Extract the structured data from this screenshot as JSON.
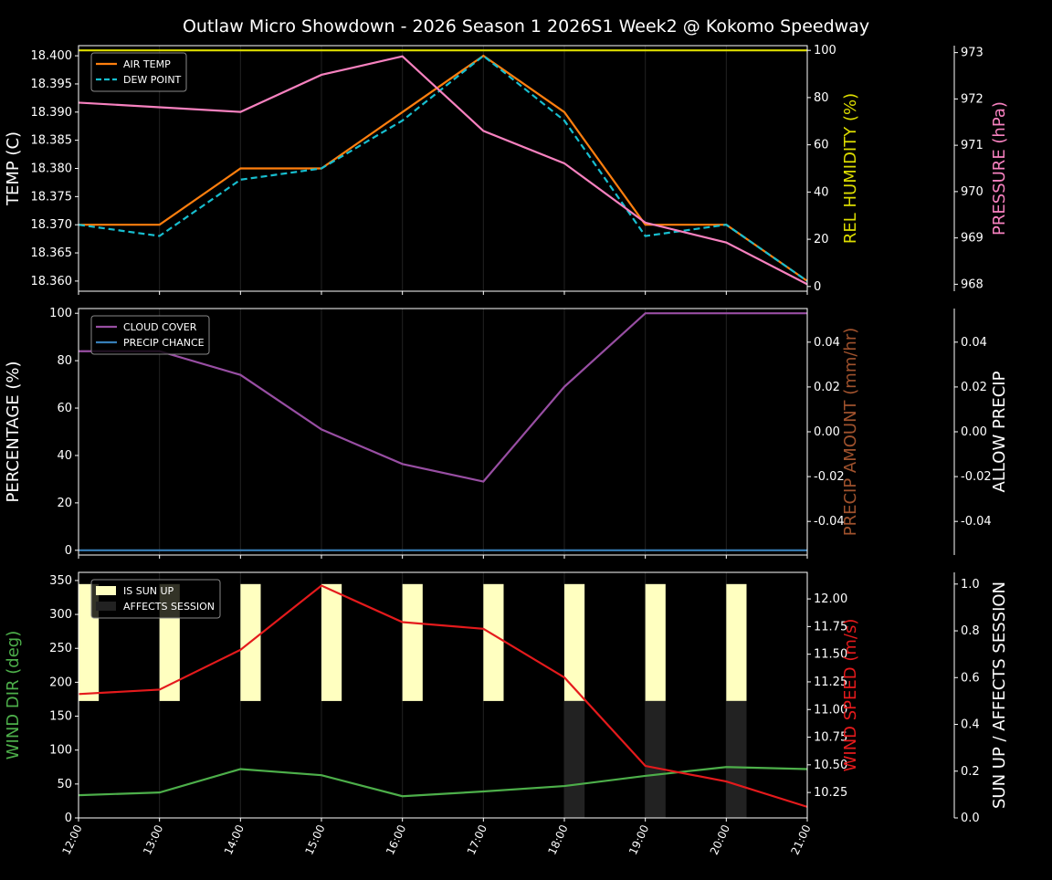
{
  "title": "Outlaw Micro Showdown - 2026 Season 1 2026S1 Week2 @ Kokomo Speedway",
  "chart_data": [
    {
      "type": "line",
      "x": [
        "12:00",
        "13:00",
        "14:00",
        "15:00",
        "16:00",
        "17:00",
        "18:00",
        "19:00",
        "20:00",
        "21:00"
      ],
      "ylabel": "TEMP (C)",
      "ylim": [
        18.3582,
        18.4018
      ],
      "yticks": [
        18.36,
        18.365,
        18.37,
        18.375,
        18.38,
        18.385,
        18.39,
        18.395,
        18.4
      ],
      "y2label": "REL HUMIDITY (%)",
      "y2lim": [
        -2,
        102
      ],
      "y2ticks": [
        0,
        20,
        40,
        60,
        80,
        100
      ],
      "y3label": "PRESSURE (hPa)",
      "y3lim": [
        967.85,
        973.15
      ],
      "y3ticks": [
        968,
        969,
        970,
        971,
        972,
        973
      ],
      "legend": "top-left",
      "series": [
        {
          "name": "AIR TEMP",
          "axis": "y",
          "color": "#ff7f0e",
          "dash": false,
          "values": [
            18.37,
            18.37,
            18.38,
            18.38,
            18.39,
            18.4,
            18.39,
            18.37,
            18.37,
            18.36
          ]
        },
        {
          "name": "DEW POINT",
          "axis": "y",
          "color": "#17becf",
          "dash": true,
          "values": [
            18.37,
            18.368,
            18.378,
            18.38,
            18.3885,
            18.4,
            18.3885,
            18.368,
            18.37,
            18.36
          ]
        },
        {
          "axis": "y2",
          "color": "#dddd00",
          "values": [
            100,
            100,
            100,
            100,
            100,
            100,
            100,
            100,
            100,
            100
          ]
        },
        {
          "axis": "y3",
          "color": "#f781bf",
          "values": [
            971.92,
            971.82,
            971.72,
            972.52,
            972.92,
            971.31,
            970.61,
            969.33,
            968.9,
            968.0
          ]
        }
      ]
    },
    {
      "type": "line",
      "ylabel": "PERCENTAGE (%)",
      "ylim": [
        -2,
        102
      ],
      "yticks": [
        0,
        20,
        40,
        60,
        80,
        100
      ],
      "y2label": "PRECIP AMOUNT (mm/hr)",
      "y2lim": [
        -0.055,
        0.055
      ],
      "y2ticks": [
        -0.04,
        -0.02,
        0.0,
        0.02,
        0.04
      ],
      "y3label": "ALLOW PRECIP",
      "y3lim": [
        -0.055,
        0.055
      ],
      "y3ticks": [
        -0.04,
        -0.02,
        0.0,
        0.02,
        0.04
      ],
      "legend": "top-left",
      "series": [
        {
          "name": "CLOUD COVER",
          "axis": "y",
          "color": "#984ea3",
          "values": [
            84,
            84,
            74,
            51,
            36.4,
            29,
            69,
            100,
            100,
            100
          ]
        },
        {
          "name": "PRECIP CHANCE",
          "axis": "y",
          "color": "#377eb8",
          "values": [
            0,
            0,
            0,
            0,
            0,
            0,
            0,
            0,
            0,
            0
          ]
        }
      ]
    },
    {
      "type": "line",
      "ylabel": "WIND DIR (deg)",
      "ylim": [
        0,
        362
      ],
      "yticks": [
        0,
        50,
        100,
        150,
        200,
        250,
        300,
        350
      ],
      "y2label": "WIND SPEED (m/s)",
      "y2lim": [
        10.02,
        12.24
      ],
      "y2ticks": [
        10.25,
        10.5,
        10.75,
        11.0,
        11.25,
        11.5,
        11.75,
        12.0
      ],
      "y3label": "SUN UP / AFFECTS SESSION",
      "y3lim": [
        0,
        1.05
      ],
      "y3ticks": [
        0.0,
        0.2,
        0.4,
        0.6,
        0.8,
        1.0
      ],
      "legend": "top-left",
      "bars": [
        {
          "name": "IS SUN UP",
          "color": "#ffffc0",
          "values": [
            1,
            1,
            1,
            1,
            1,
            1,
            1,
            1,
            1,
            0
          ]
        },
        {
          "name": "AFFECTS SESSION",
          "color": "#222222",
          "values": [
            0,
            0,
            0,
            0,
            0,
            0,
            1,
            1,
            1,
            0
          ]
        }
      ],
      "series": [
        {
          "axis": "y",
          "color": "#4daf4a",
          "values": [
            33.5,
            37.5,
            72,
            63,
            32,
            39,
            47,
            62,
            75,
            72
          ]
        },
        {
          "axis": "y2",
          "color": "#e41a1c",
          "values": [
            11.14,
            11.18,
            11.54,
            12.12,
            11.79,
            11.73,
            11.29,
            10.49,
            10.35,
            10.12
          ]
        }
      ]
    }
  ],
  "axis_colors": {
    "temp": "#ffffff",
    "humidity": "#dddd00",
    "pressure": "#f781bf",
    "precip_amount": "#a0522d",
    "wind_dir": "#4daf4a",
    "wind_speed": "#e41a1c"
  }
}
